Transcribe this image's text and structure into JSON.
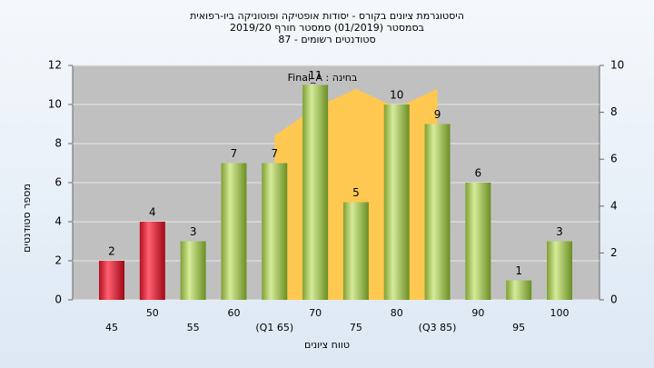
{
  "chart_data": {
    "type": "bar",
    "title": "היסטוגרמת ציונים בקורס - יסודות אופטיקה ופוטוניקה ביו-רפואית",
    "subtitle": "בסמסטר (01/2019)  סמסטר חורף 2019/20",
    "subtitle2": "סטודנטים רשומים - 87",
    "annotation": "בחינה : Final_A",
    "x_label": "טווח ציונים",
    "y_label": "מספר סטודנטים",
    "categories": [
      "45",
      "50",
      "55",
      "60",
      "(Q1 65)",
      "70",
      "75",
      "80",
      "(Q3 85)",
      "90",
      "95",
      "100"
    ],
    "values": [
      2,
      4,
      3,
      7,
      7,
      11,
      5,
      10,
      9,
      6,
      1,
      3
    ],
    "colors": [
      "red",
      "red",
      "green",
      "green",
      "green",
      "green",
      "green",
      "green",
      "green",
      "green",
      "green",
      "green"
    ],
    "area": {
      "axis": "y2",
      "color": "#ffc850",
      "values": [
        null,
        null,
        null,
        null,
        7,
        8.2,
        9,
        8.2,
        9,
        null,
        null,
        null
      ]
    },
    "ylim": [
      0,
      12
    ],
    "yticks": [
      0,
      2,
      4,
      6,
      8,
      10,
      12
    ],
    "y2lim": [
      0,
      10
    ],
    "y2ticks": [
      0,
      2,
      4,
      6,
      8,
      10
    ],
    "grid": true
  }
}
